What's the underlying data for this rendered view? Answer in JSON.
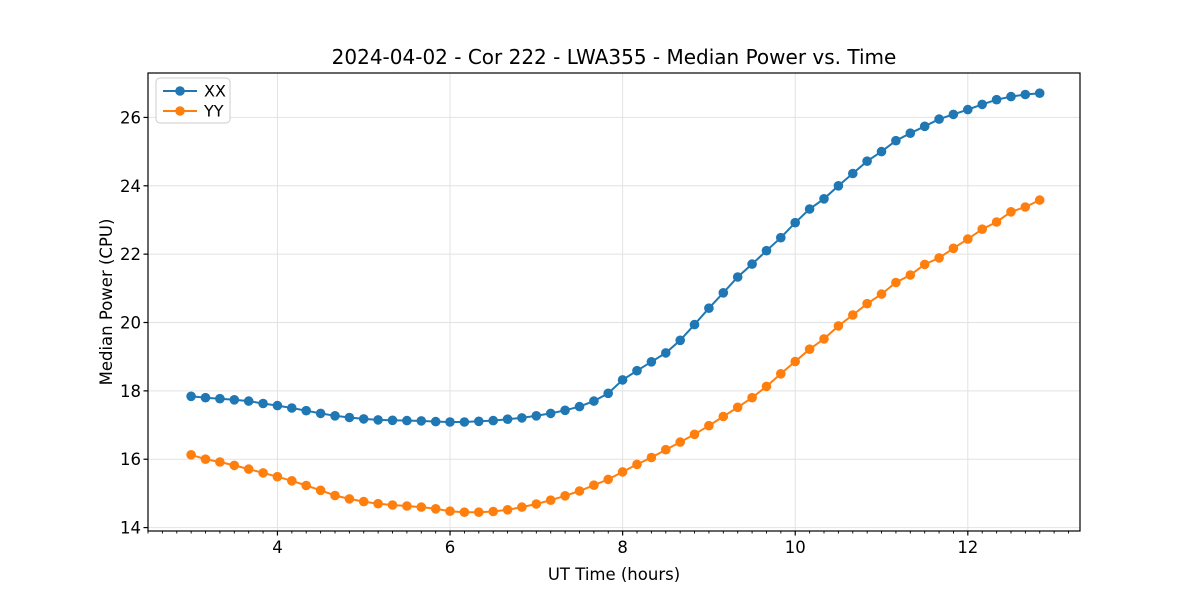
{
  "figure": {
    "background_color": "#ffffff",
    "frame_color": "#000000",
    "grid_color": "#e2e2e2"
  },
  "chart_data": {
    "type": "line",
    "title": "2024-04-02 - Cor 222 - LWA355 - Median Power vs. Time",
    "xlabel": "UT Time (hours)",
    "ylabel": "Median Power (CPU)",
    "xlim": [
      2.5,
      13.3
    ],
    "ylim": [
      13.9,
      27.3
    ],
    "x_major_ticks": [
      4,
      6,
      8,
      10,
      12
    ],
    "x_minor_tick_step_hours": 0.16667,
    "y_major_ticks": [
      14,
      16,
      18,
      20,
      22,
      24,
      26
    ],
    "grid": "major-both",
    "marker": "circle",
    "legend_position": "upper-left",
    "x": [
      3.0,
      3.1667,
      3.3333,
      3.5,
      3.6667,
      3.8333,
      4.0,
      4.1667,
      4.3333,
      4.5,
      4.6667,
      4.8333,
      5.0,
      5.1667,
      5.3333,
      5.5,
      5.6667,
      5.8333,
      6.0,
      6.1667,
      6.3333,
      6.5,
      6.6667,
      6.8333,
      7.0,
      7.1667,
      7.3333,
      7.5,
      7.6667,
      7.8333,
      8.0,
      8.1667,
      8.3333,
      8.5,
      8.6667,
      8.8333,
      9.0,
      9.1667,
      9.3333,
      9.5,
      9.6667,
      9.8333,
      10.0,
      10.1667,
      10.3333,
      10.5,
      10.6667,
      10.8333,
      11.0,
      11.1667,
      11.3333,
      11.5,
      11.6667,
      11.8333,
      12.0,
      12.1667,
      12.3333,
      12.5,
      12.6667,
      12.8333
    ],
    "series": [
      {
        "name": "XX",
        "color": "#1f77b4",
        "values": [
          17.84,
          17.8,
          17.77,
          17.74,
          17.7,
          17.63,
          17.57,
          17.5,
          17.42,
          17.34,
          17.27,
          17.22,
          17.18,
          17.15,
          17.14,
          17.13,
          17.12,
          17.1,
          17.09,
          17.09,
          17.11,
          17.13,
          17.17,
          17.21,
          17.27,
          17.34,
          17.43,
          17.54,
          17.7,
          17.93,
          18.32,
          18.59,
          18.85,
          19.11,
          19.48,
          19.94,
          20.42,
          20.87,
          21.33,
          21.71,
          22.1,
          22.48,
          22.92,
          23.32,
          23.62,
          24.0,
          24.36,
          24.72,
          25.0,
          25.32,
          25.54,
          25.74,
          25.95,
          26.09,
          26.23,
          26.38,
          26.52,
          26.61,
          26.67,
          26.71
        ]
      },
      {
        "name": "YY",
        "color": "#ff7f0e",
        "values": [
          16.13,
          16.0,
          15.92,
          15.82,
          15.71,
          15.6,
          15.49,
          15.37,
          15.23,
          15.09,
          14.94,
          14.84,
          14.76,
          14.7,
          14.66,
          14.63,
          14.6,
          14.55,
          14.48,
          14.45,
          14.45,
          14.47,
          14.52,
          14.6,
          14.69,
          14.8,
          14.93,
          15.07,
          15.24,
          15.41,
          15.63,
          15.85,
          16.05,
          16.28,
          16.5,
          16.73,
          16.98,
          17.25,
          17.52,
          17.8,
          18.13,
          18.5,
          18.86,
          19.22,
          19.52,
          19.9,
          20.22,
          20.55,
          20.83,
          21.17,
          21.39,
          21.7,
          21.89,
          22.17,
          22.44,
          22.73,
          22.94,
          23.24,
          23.38,
          23.58
        ]
      }
    ]
  }
}
